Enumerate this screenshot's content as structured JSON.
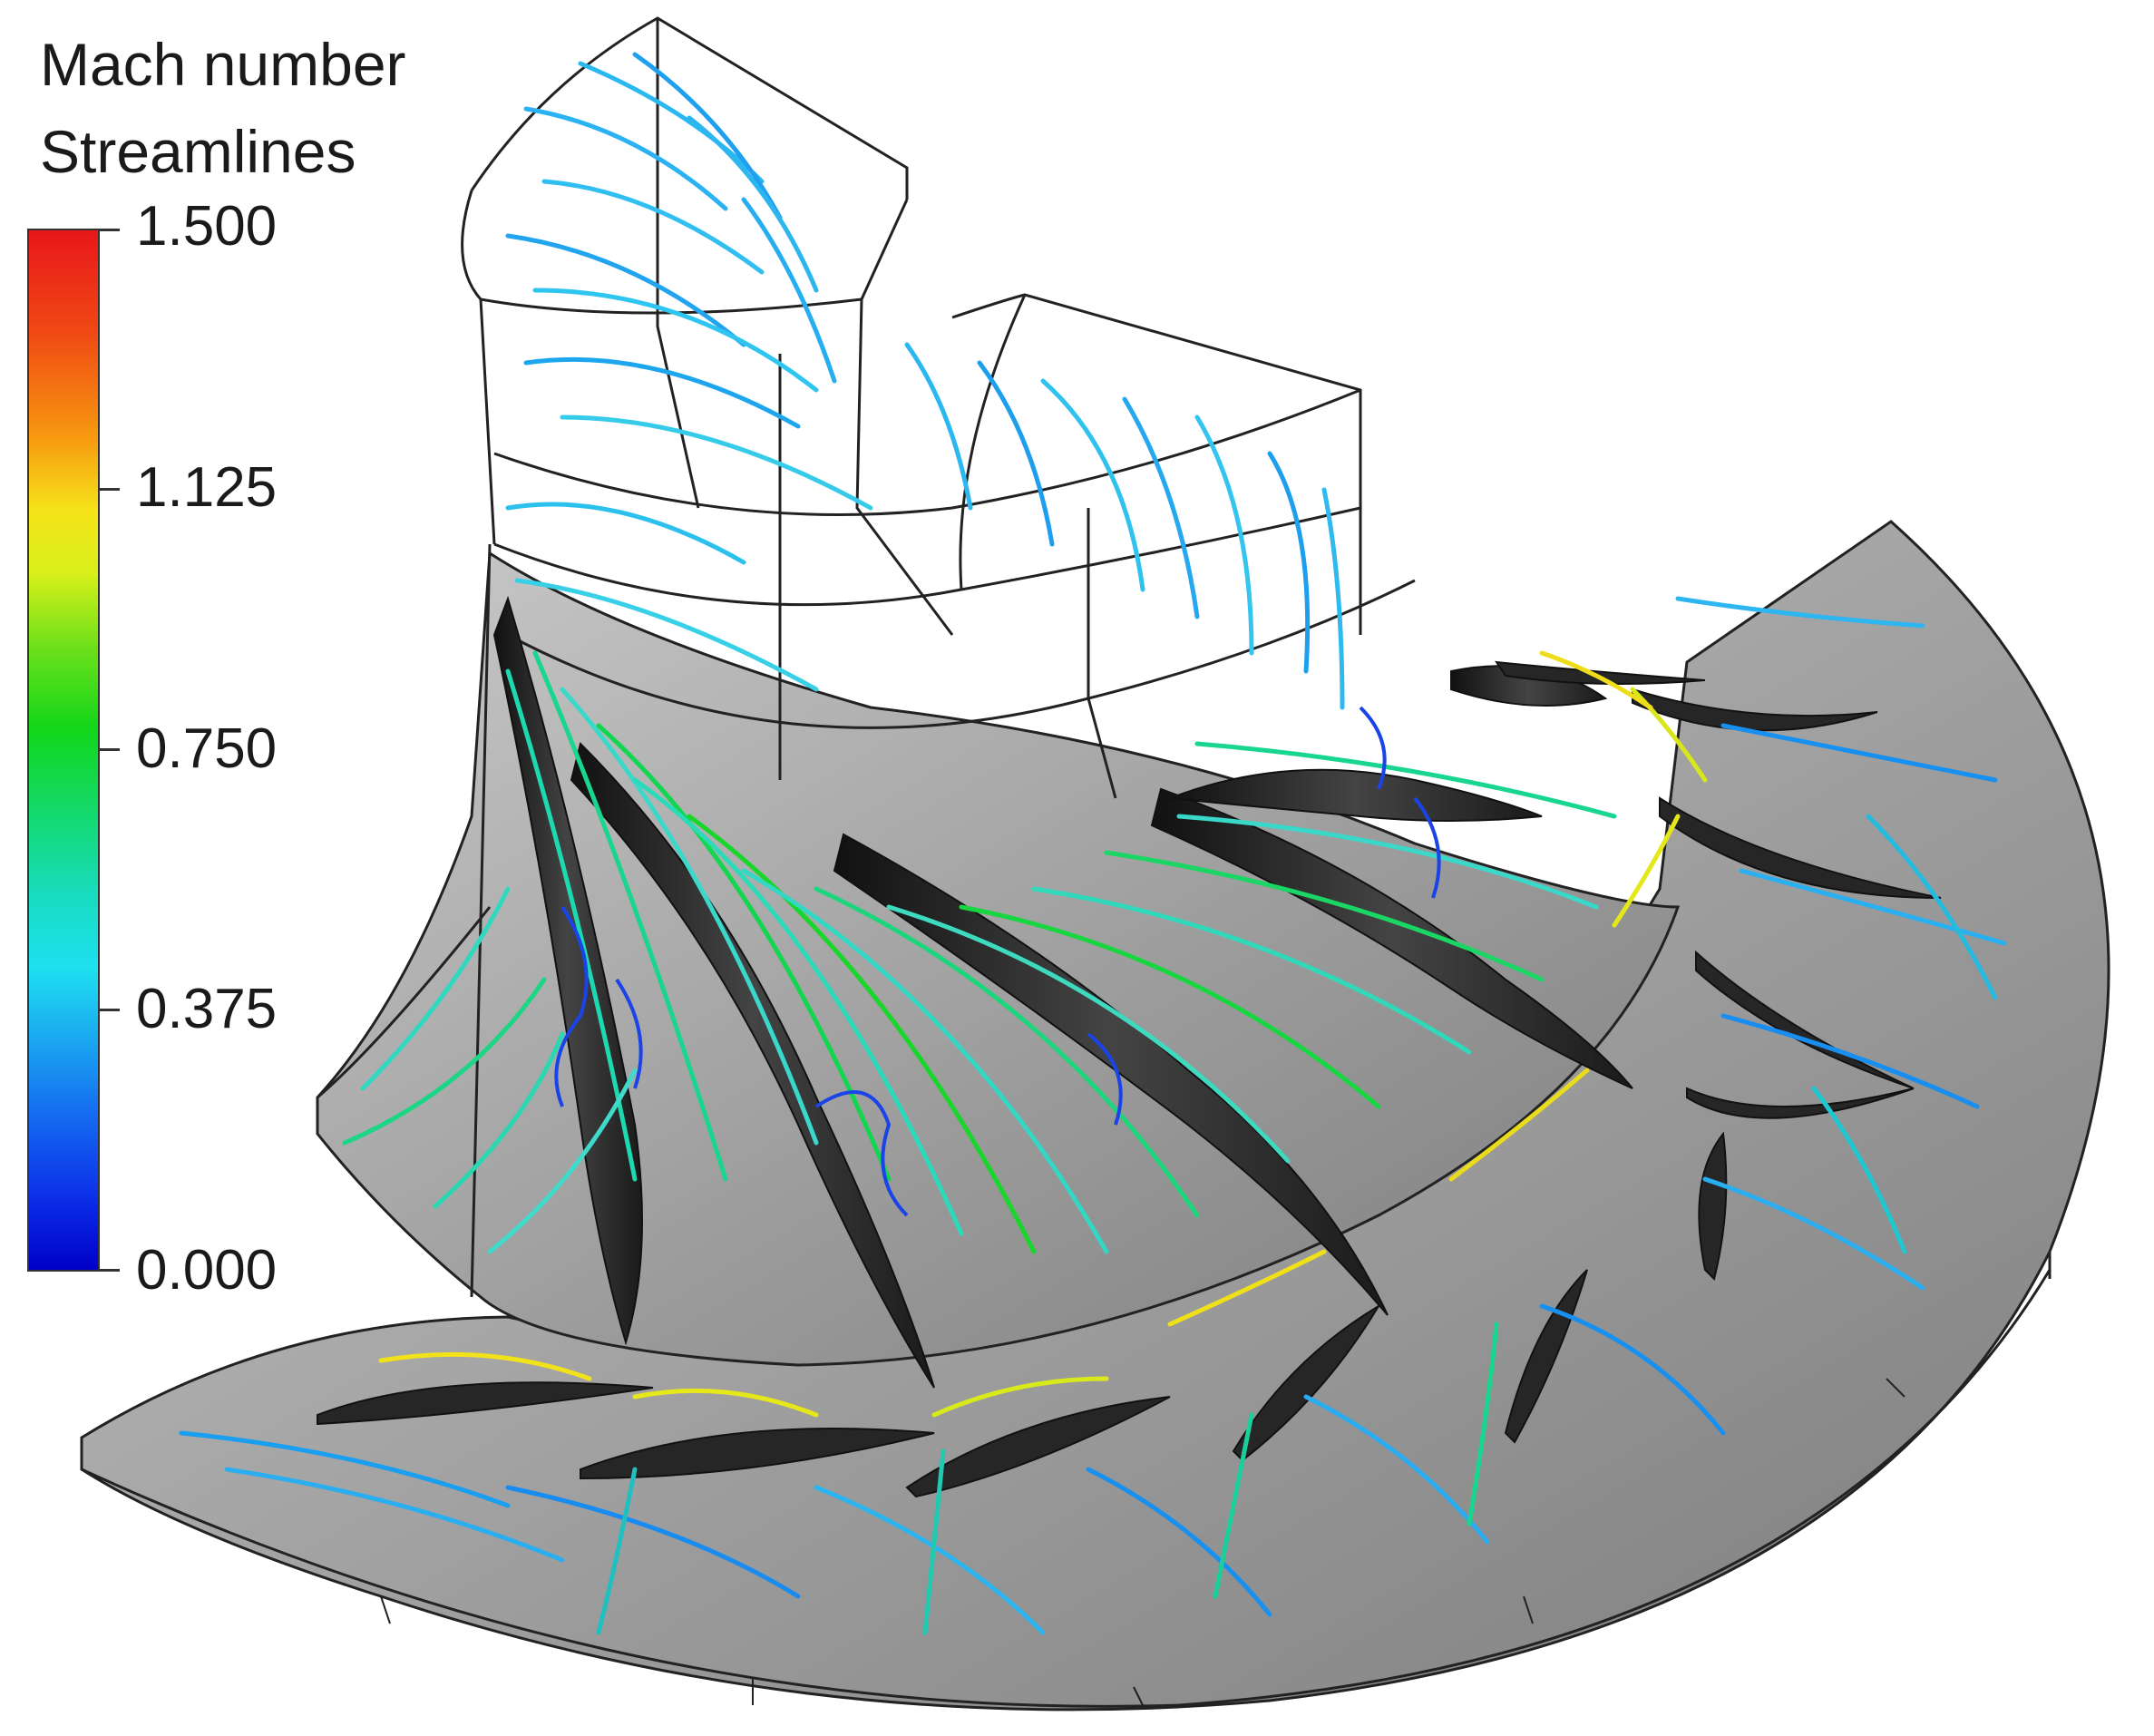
{
  "legend": {
    "title_line1": "Mach number",
    "title_line2": "Streamlines",
    "ticks": [
      "1.500",
      "1.125",
      "0.750",
      "0.375",
      "0.000"
    ],
    "colormap": [
      "#e8161a",
      "#f79a10",
      "#f5e41a",
      "#12d61a",
      "#1ee0f0",
      "#1464f0",
      "#0000c8"
    ]
  }
}
